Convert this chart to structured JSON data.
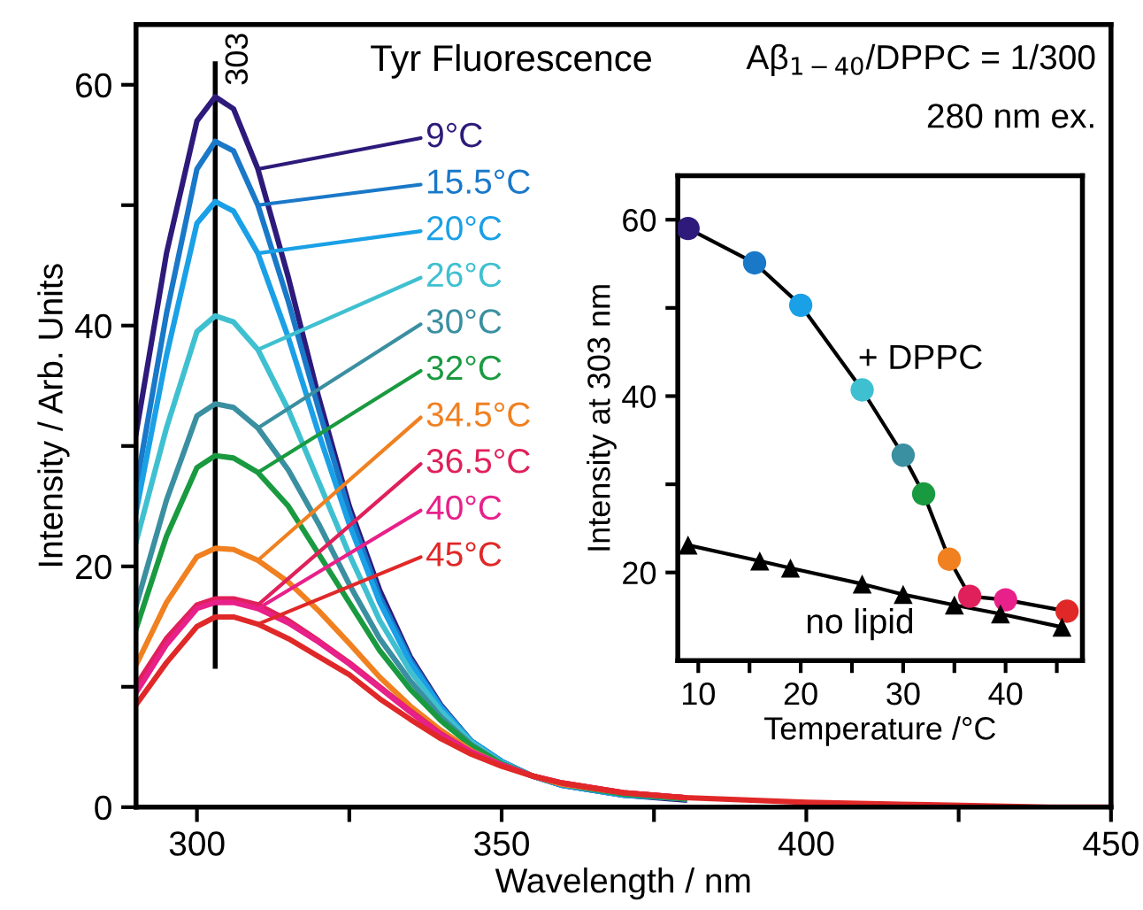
{
  "chart_data": [
    {
      "type": "line",
      "title": "Tyr Fluorescence",
      "xlabel": "Wavelength / nm",
      "ylabel": "Intensity / Arb. Units",
      "x": [
        290,
        295,
        300,
        303,
        306,
        310,
        315,
        320,
        325,
        330,
        335,
        340,
        345,
        350,
        355,
        360,
        370,
        380,
        400,
        420,
        440,
        450
      ],
      "series": [
        {
          "name": "9°C",
          "color": "#2e1a7a",
          "x": [
            290,
            295,
            300,
            303,
            306,
            310,
            315,
            320,
            325,
            330,
            335,
            340,
            345,
            350,
            355,
            360,
            370,
            380
          ],
          "values": [
            31,
            46,
            57,
            59,
            58,
            53,
            44,
            34,
            25,
            18,
            12.5,
            8.5,
            5.5,
            3.8,
            2.6,
            1.8,
            1.0,
            0.6
          ]
        },
        {
          "name": "15.5°C",
          "color": "#1a78c8",
          "x": [
            290,
            295,
            300,
            303,
            306,
            310,
            315,
            320,
            325,
            330,
            335,
            340,
            345,
            350,
            355,
            360,
            370,
            380
          ],
          "values": [
            26.5,
            41,
            53,
            55.3,
            54.5,
            50,
            42,
            33,
            24.5,
            17.5,
            12.3,
            8.4,
            5.5,
            3.8,
            2.6,
            1.8,
            1.0,
            0.7
          ]
        },
        {
          "name": "20°C",
          "color": "#1aa0e6",
          "x": [
            290,
            295,
            300,
            303,
            306,
            310,
            315,
            320,
            325,
            330,
            335,
            340,
            345,
            350,
            355,
            360,
            370,
            380
          ],
          "values": [
            24.5,
            37.5,
            48.5,
            50.3,
            49.5,
            46,
            39,
            31,
            23.5,
            17,
            12,
            8.3,
            5.5,
            3.8,
            2.6,
            1.8,
            1.0,
            0.7
          ]
        },
        {
          "name": "26°C",
          "color": "#3fc0d0",
          "x": [
            290,
            295,
            300,
            303,
            306,
            310,
            315,
            320,
            325,
            330,
            335,
            340,
            345,
            350,
            355,
            360,
            370,
            380
          ],
          "values": [
            22,
            31.5,
            39.5,
            40.8,
            40.3,
            38,
            33,
            27,
            21,
            15.5,
            11.3,
            8,
            5.4,
            3.7,
            2.6,
            1.9,
            1.1,
            0.7
          ]
        },
        {
          "name": "30°C",
          "color": "#3a8fa0",
          "x": [
            290,
            295,
            300,
            303,
            306,
            310,
            315,
            320,
            325,
            330,
            335,
            340,
            345,
            350,
            355,
            360,
            370,
            380
          ],
          "values": [
            16.7,
            25.5,
            32.5,
            33.5,
            33.2,
            31.5,
            28,
            23.5,
            18.5,
            14,
            10.5,
            7.5,
            5.2,
            3.6,
            2.6,
            1.9,
            1.1,
            0.7
          ]
        },
        {
          "name": "32°C",
          "color": "#1a9a40",
          "x": [
            290,
            295,
            300,
            303,
            306,
            310,
            315,
            320,
            325,
            330,
            335,
            340,
            345,
            350,
            355,
            360,
            370,
            380
          ],
          "values": [
            14.8,
            22.5,
            28.2,
            29.2,
            29,
            27.8,
            25,
            21,
            17,
            13,
            9.8,
            7.2,
            5.1,
            3.6,
            2.6,
            1.9,
            1.1,
            0.7
          ]
        },
        {
          "name": "34.5°C",
          "color": "#f08020",
          "x": [
            290,
            295,
            300,
            303,
            306,
            310,
            315,
            320,
            325,
            330,
            335,
            340,
            345,
            350,
            355,
            360,
            370,
            380
          ],
          "values": [
            11.8,
            17,
            20.8,
            21.5,
            21.4,
            20.5,
            18.7,
            16.3,
            13.6,
            10.8,
            8.4,
            6.4,
            4.7,
            3.5,
            2.6,
            1.9,
            1.2,
            0.8
          ]
        },
        {
          "name": "36.5°C",
          "color": "#e0205a",
          "x": [
            290,
            295,
            300,
            303,
            306,
            310,
            315,
            320,
            325,
            330,
            335,
            340,
            345,
            350,
            355,
            360,
            370,
            380
          ],
          "values": [
            10.1,
            14,
            16.8,
            17.3,
            17.3,
            16.8,
            15.5,
            13.8,
            12,
            10,
            8,
            6.1,
            4.6,
            3.5,
            2.6,
            2.0,
            1.2,
            0.8
          ]
        },
        {
          "name": "40°C",
          "color": "#e8208a",
          "x": [
            290,
            295,
            300,
            303,
            306,
            310,
            315,
            320,
            325,
            330,
            335,
            340,
            345,
            350,
            355,
            360,
            370,
            380
          ],
          "values": [
            9.5,
            13.5,
            16.5,
            17.0,
            17.0,
            16.5,
            15.3,
            13.7,
            11.9,
            9.9,
            7.9,
            6.0,
            4.6,
            3.5,
            2.6,
            2.0,
            1.2,
            0.8
          ]
        },
        {
          "name": "45°C",
          "color": "#e02828",
          "values": [
            8.5,
            12,
            15,
            15.8,
            15.8,
            15.2,
            14,
            12.5,
            11,
            9,
            7.3,
            5.7,
            4.4,
            3.4,
            2.6,
            2.0,
            1.2,
            0.8,
            0.4,
            0.2,
            0,
            0
          ]
        }
      ],
      "xlim": [
        290,
        450
      ],
      "xticks": [
        300,
        {
          "value": 325,
          "label": null
        },
        350,
        {
          "value": 375,
          "label": null
        },
        400,
        {
          "value": 425,
          "label": null
        },
        450
      ],
      "ylim": [
        0,
        65
      ],
      "yticks": [
        0,
        {
          "value": 10,
          "label": null
        },
        20,
        {
          "value": 30,
          "label": null
        },
        40,
        {
          "value": 50,
          "label": null
        },
        60
      ],
      "ref_lines": [
        {
          "axis": "x",
          "value": 303,
          "label": "303",
          "color": "#000000"
        }
      ],
      "annotations": [
        "Aβ$_{1−40}$/DPPC = 1/300",
        "280 nm ex."
      ],
      "grid": false,
      "legend": "top",
      "line_style": "solid",
      "marker": "none"
    },
    {
      "type": "line",
      "xlabel": "Temperature /°C",
      "ylabel": "Intensity at 303 nm",
      "series": [
        {
          "name": "+ DPPC",
          "color": "#000000",
          "marker": "circle",
          "x": [
            9,
            15.5,
            20,
            26,
            30,
            32,
            34.5,
            36.5,
            40,
            46
          ],
          "values": [
            59,
            55.1,
            50.3,
            40.7,
            33.3,
            28.9,
            21.5,
            17.3,
            16.9,
            15.6
          ],
          "colors": [
            "#2e1a7a",
            "#1a78c8",
            "#1aa0e6",
            "#3fc0d0",
            "#3a8fa0",
            "#1a9a40",
            "#f08020",
            "#e0205a",
            "#e8208a",
            "#e02828"
          ]
        },
        {
          "name": "no lipid",
          "color": "#000000",
          "marker": "triangle",
          "x": [
            9,
            16,
            19,
            26,
            30,
            35,
            39.5,
            45.5
          ],
          "values": [
            23.1,
            21.3,
            20.5,
            18.7,
            17.5,
            16.3,
            15.3,
            13.8
          ]
        }
      ],
      "xlim": [
        8,
        47.5
      ],
      "xticks": [
        10,
        {
          "value": 15,
          "label": null
        },
        20,
        {
          "value": 25,
          "label": null
        },
        30,
        {
          "value": 35,
          "label": null
        },
        40,
        {
          "value": 45,
          "label": null
        }
      ],
      "ylim": [
        10,
        65
      ],
      "yticks": [
        20,
        {
          "value": 30,
          "label": null
        },
        40,
        {
          "value": 50,
          "label": null
        },
        60
      ],
      "grid": false,
      "legend": false,
      "line_style": "solid"
    }
  ]
}
